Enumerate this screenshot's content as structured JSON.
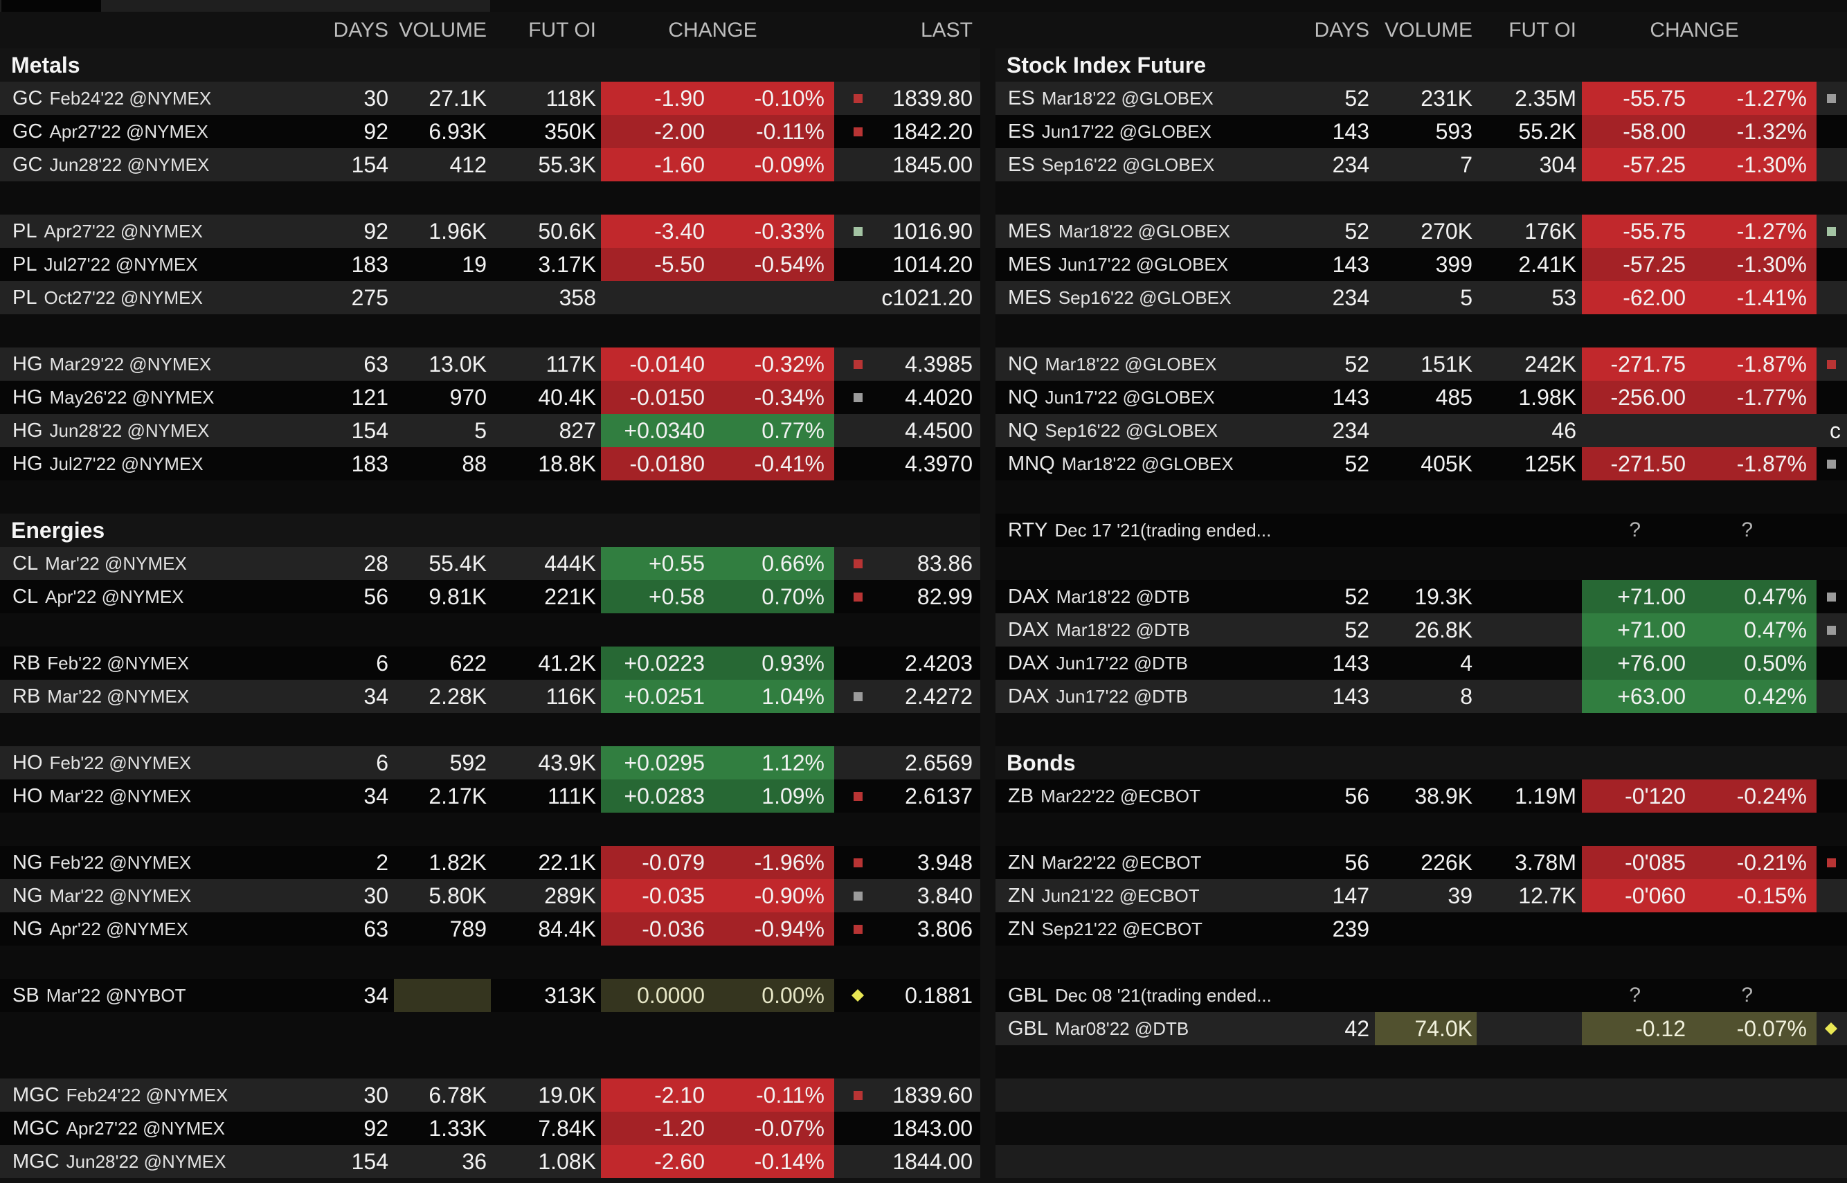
{
  "columns": {
    "days": "DAYS",
    "volume": "VOLUME",
    "fut_oi": "FUT OI",
    "change": "CHANGE",
    "last": "LAST"
  },
  "colors": {
    "row_light": "#232323",
    "row_dark": "#060606",
    "change_down_bg": "#c1282c",
    "change_down_bg_dim": "#a42226",
    "change_up_bg": "#317e40",
    "change_up_bg_dim": "#276834",
    "flat_dim_bg": "#35351f",
    "flat_highlight_bg": "#51512f",
    "indicator_red": "#b83434",
    "indicator_green": "#a3c3a3",
    "indicator_gray": "#9b9b9b",
    "indicator_yellow": "#e9e754"
  },
  "left_table": {
    "rows": [
      {
        "kind": "section",
        "label": "Metals"
      },
      {
        "kind": "quote",
        "shade": "light",
        "sym": "GC",
        "det": "Feb24'22 @NYMEX",
        "days": "30",
        "vol": "27.1K",
        "oi": "118K",
        "chg": "-1.90",
        "pct": "-0.10%",
        "dir": "dn",
        "ind": "red",
        "last": "1839.80"
      },
      {
        "kind": "quote",
        "shade": "dark",
        "sym": "GC",
        "det": "Apr27'22 @NYMEX",
        "days": "92",
        "vol": "6.93K",
        "oi": "350K",
        "chg": "-2.00",
        "pct": "-0.11%",
        "dir": "dn",
        "ind": "red",
        "last": "1842.20"
      },
      {
        "kind": "quote",
        "shade": "light",
        "sym": "GC",
        "det": "Jun28'22 @NYMEX",
        "days": "154",
        "vol": "412",
        "oi": "55.3K",
        "chg": "-1.60",
        "pct": "-0.09%",
        "dir": "dn",
        "last": "1845.00"
      },
      {
        "kind": "gap",
        "shade": "dark"
      },
      {
        "kind": "quote",
        "shade": "light",
        "sym": "PL",
        "det": "Apr27'22 @NYMEX",
        "days": "92",
        "vol": "1.96K",
        "oi": "50.6K",
        "chg": "-3.40",
        "pct": "-0.33%",
        "dir": "dn",
        "ind": "green",
        "last": "1016.90"
      },
      {
        "kind": "quote",
        "shade": "dark",
        "sym": "PL",
        "det": "Jul27'22 @NYMEX",
        "days": "183",
        "vol": "19",
        "oi": "3.17K",
        "chg": "-5.50",
        "pct": "-0.54%",
        "dir": "dn",
        "last": "1014.20"
      },
      {
        "kind": "quote",
        "shade": "light",
        "sym": "PL",
        "det": "Oct27'22 @NYMEX",
        "days": "275",
        "oi": "358",
        "dir": "none",
        "last": "c1021.20"
      },
      {
        "kind": "gap",
        "shade": "dark"
      },
      {
        "kind": "quote",
        "shade": "light",
        "sym": "HG",
        "det": "Mar29'22 @NYMEX",
        "days": "63",
        "vol": "13.0K",
        "oi": "117K",
        "chg": "-0.0140",
        "pct": "-0.32%",
        "dir": "dn",
        "ind": "red",
        "last": "4.3985"
      },
      {
        "kind": "quote",
        "shade": "dark",
        "sym": "HG",
        "det": "May26'22 @NYMEX",
        "days": "121",
        "vol": "970",
        "oi": "40.4K",
        "chg": "-0.0150",
        "pct": "-0.34%",
        "dir": "dn",
        "ind": "gray",
        "last": "4.4020"
      },
      {
        "kind": "quote",
        "shade": "light",
        "sym": "HG",
        "det": "Jun28'22 @NYMEX",
        "days": "154",
        "vol": "5",
        "oi": "827",
        "chg": "+0.0340",
        "pct": "0.77%",
        "dir": "up",
        "last": "4.4500"
      },
      {
        "kind": "quote",
        "shade": "dark",
        "sym": "HG",
        "det": "Jul27'22 @NYMEX",
        "days": "183",
        "vol": "88",
        "oi": "18.8K",
        "chg": "-0.0180",
        "pct": "-0.41%",
        "dir": "dn",
        "last": "4.3970"
      },
      {
        "kind": "gap",
        "shade": "dark"
      },
      {
        "kind": "section",
        "label": "Energies"
      },
      {
        "kind": "quote",
        "shade": "light",
        "sym": "CL",
        "det": "Mar'22 @NYMEX",
        "days": "28",
        "vol": "55.4K",
        "oi": "444K",
        "chg": "+0.55",
        "pct": "0.66%",
        "dir": "up",
        "ind": "red",
        "last": "83.86"
      },
      {
        "kind": "quote",
        "shade": "dark",
        "sym": "CL",
        "det": "Apr'22 @NYMEX",
        "days": "56",
        "vol": "9.81K",
        "oi": "221K",
        "chg": "+0.58",
        "pct": "0.70%",
        "dir": "up",
        "ind": "red",
        "last": "82.99"
      },
      {
        "kind": "gap",
        "shade": "dark"
      },
      {
        "kind": "quote",
        "shade": "dark",
        "sym": "RB",
        "det": "Feb'22 @NYMEX",
        "days": "6",
        "vol": "622",
        "oi": "41.2K",
        "chg": "+0.0223",
        "pct": "0.93%",
        "dir": "up",
        "last": "2.4203"
      },
      {
        "kind": "quote",
        "shade": "light",
        "sym": "RB",
        "det": "Mar'22 @NYMEX",
        "days": "34",
        "vol": "2.28K",
        "oi": "116K",
        "chg": "+0.0251",
        "pct": "1.04%",
        "dir": "up",
        "ind": "gray",
        "last": "2.4272"
      },
      {
        "kind": "gap",
        "shade": "dark"
      },
      {
        "kind": "quote",
        "shade": "light",
        "sym": "HO",
        "det": "Feb'22 @NYMEX",
        "days": "6",
        "vol": "592",
        "oi": "43.9K",
        "chg": "+0.0295",
        "pct": "1.12%",
        "dir": "up",
        "last": "2.6569"
      },
      {
        "kind": "quote",
        "shade": "dark",
        "sym": "HO",
        "det": "Mar'22 @NYMEX",
        "days": "34",
        "vol": "2.17K",
        "oi": "111K",
        "chg": "+0.0283",
        "pct": "1.09%",
        "dir": "up",
        "ind": "red",
        "last": "2.6137"
      },
      {
        "kind": "gap",
        "shade": "dark"
      },
      {
        "kind": "quote",
        "shade": "dark",
        "sym": "NG",
        "det": "Feb'22 @NYMEX",
        "days": "2",
        "vol": "1.82K",
        "oi": "22.1K",
        "chg": "-0.079",
        "pct": "-1.96%",
        "dir": "dn",
        "ind": "red",
        "last": "3.948"
      },
      {
        "kind": "quote",
        "shade": "light",
        "sym": "NG",
        "det": "Mar'22 @NYMEX",
        "days": "30",
        "vol": "5.80K",
        "oi": "289K",
        "chg": "-0.035",
        "pct": "-0.90%",
        "dir": "dn",
        "ind": "gray",
        "last": "3.840"
      },
      {
        "kind": "quote",
        "shade": "dark",
        "sym": "NG",
        "det": "Apr'22 @NYMEX",
        "days": "63",
        "vol": "789",
        "oi": "84.4K",
        "chg": "-0.036",
        "pct": "-0.94%",
        "dir": "dn",
        "ind": "red",
        "last": "3.806"
      },
      {
        "kind": "gap",
        "shade": "dark"
      },
      {
        "kind": "quote",
        "shade": "dark",
        "sym": "SB",
        "det": "Mar'22 @NYBOT",
        "days": "34",
        "vol": "",
        "volbg": "fl",
        "oi": "313K",
        "chg": "0.0000",
        "pct": "0.00%",
        "dir": "fl",
        "ind": "yellow",
        "last": "0.1881"
      },
      {
        "kind": "gap",
        "shade": "dark"
      },
      {
        "kind": "gap",
        "shade": "dark"
      },
      {
        "kind": "quote",
        "shade": "light",
        "sym": "MGC",
        "det": "Feb24'22 @NYMEX",
        "days": "30",
        "vol": "6.78K",
        "oi": "19.0K",
        "chg": "-2.10",
        "pct": "-0.11%",
        "dir": "dn",
        "ind": "red",
        "last": "1839.60"
      },
      {
        "kind": "quote",
        "shade": "dark",
        "sym": "MGC",
        "det": "Apr27'22 @NYMEX",
        "days": "92",
        "vol": "1.33K",
        "oi": "7.84K",
        "chg": "-1.20",
        "pct": "-0.07%",
        "dir": "dn",
        "last": "1843.00"
      },
      {
        "kind": "quote",
        "shade": "light",
        "sym": "MGC",
        "det": "Jun28'22 @NYMEX",
        "days": "154",
        "vol": "36",
        "oi": "1.08K",
        "chg": "-2.60",
        "pct": "-0.14%",
        "dir": "dn",
        "last": "1844.00"
      }
    ]
  },
  "right_table": {
    "rows": [
      {
        "kind": "section",
        "label": "Stock Index Future"
      },
      {
        "kind": "quote",
        "shade": "light",
        "sym": "ES",
        "det": "Mar18'22 @GLOBEX",
        "days": "52",
        "vol": "231K",
        "oi": "2.35M",
        "chg": "-55.75",
        "pct": "-1.27%",
        "dir": "dn",
        "ind": "gray"
      },
      {
        "kind": "quote",
        "shade": "dark",
        "sym": "ES",
        "det": "Jun17'22 @GLOBEX",
        "days": "143",
        "vol": "593",
        "oi": "55.2K",
        "chg": "-58.00",
        "pct": "-1.32%",
        "dir": "dn"
      },
      {
        "kind": "quote",
        "shade": "light",
        "sym": "ES",
        "det": "Sep16'22 @GLOBEX",
        "days": "234",
        "vol": "7",
        "oi": "304",
        "chg": "-57.25",
        "pct": "-1.30%",
        "dir": "dn"
      },
      {
        "kind": "gap",
        "shade": "dark"
      },
      {
        "kind": "quote",
        "shade": "light",
        "sym": "MES",
        "det": "Mar18'22 @GLOBEX",
        "days": "52",
        "vol": "270K",
        "oi": "176K",
        "chg": "-55.75",
        "pct": "-1.27%",
        "dir": "dn",
        "ind": "green"
      },
      {
        "kind": "quote",
        "shade": "dark",
        "sym": "MES",
        "det": "Jun17'22 @GLOBEX",
        "days": "143",
        "vol": "399",
        "oi": "2.41K",
        "chg": "-57.25",
        "pct": "-1.30%",
        "dir": "dn"
      },
      {
        "kind": "quote",
        "shade": "light",
        "sym": "MES",
        "det": "Sep16'22 @GLOBEX",
        "days": "234",
        "vol": "5",
        "oi": "53",
        "chg": "-62.00",
        "pct": "-1.41%",
        "dir": "dn"
      },
      {
        "kind": "gap",
        "shade": "dark"
      },
      {
        "kind": "quote",
        "shade": "light",
        "sym": "NQ",
        "det": "Mar18'22 @GLOBEX",
        "days": "52",
        "vol": "151K",
        "oi": "242K",
        "chg": "-271.75",
        "pct": "-1.87%",
        "dir": "dn",
        "ind": "red"
      },
      {
        "kind": "quote",
        "shade": "dark",
        "sym": "NQ",
        "det": "Jun17'22 @GLOBEX",
        "days": "143",
        "vol": "485",
        "oi": "1.98K",
        "chg": "-256.00",
        "pct": "-1.77%",
        "dir": "dn"
      },
      {
        "kind": "quote",
        "shade": "light",
        "sym": "NQ",
        "det": "Sep16'22 @GLOBEX",
        "days": "234",
        "oi": "46",
        "dir": "none",
        "last": "c"
      },
      {
        "kind": "quote",
        "shade": "dark",
        "sym": "MNQ",
        "det": "Mar18'22 @GLOBEX",
        "days": "52",
        "vol": "405K",
        "oi": "125K",
        "chg": "-271.50",
        "pct": "-1.87%",
        "dir": "dn",
        "ind": "gray"
      },
      {
        "kind": "gap",
        "shade": "dark"
      },
      {
        "kind": "quote",
        "shade": "dark",
        "sym": "RTY",
        "det": "Dec 17 '21(trading ended...",
        "dir": "none",
        "q": true
      },
      {
        "kind": "gap",
        "shade": "dark"
      },
      {
        "kind": "quote",
        "shade": "dark",
        "sym": "DAX",
        "det": "Mar18'22 @DTB",
        "days": "52",
        "vol": "19.3K",
        "chg": "+71.00",
        "pct": "0.47%",
        "dir": "up",
        "ind": "gray"
      },
      {
        "kind": "quote",
        "shade": "light",
        "sym": "DAX",
        "det": "Mar18'22 @DTB",
        "days": "52",
        "vol": "26.8K",
        "chg": "+71.00",
        "pct": "0.47%",
        "dir": "up",
        "ind": "gray"
      },
      {
        "kind": "quote",
        "shade": "dark",
        "sym": "DAX",
        "det": "Jun17'22 @DTB",
        "days": "143",
        "vol": "4",
        "chg": "+76.00",
        "pct": "0.50%",
        "dir": "up"
      },
      {
        "kind": "quote",
        "shade": "light",
        "sym": "DAX",
        "det": "Jun17'22 @DTB",
        "days": "143",
        "vol": "8",
        "chg": "+63.00",
        "pct": "0.42%",
        "dir": "up"
      },
      {
        "kind": "gap",
        "shade": "dark"
      },
      {
        "kind": "section",
        "label": "Bonds"
      },
      {
        "kind": "quote",
        "shade": "dark",
        "sym": "ZB",
        "det": "Mar22'22 @ECBOT",
        "days": "56",
        "vol": "38.9K",
        "oi": "1.19M",
        "chg": "-0'120",
        "pct": "-0.24%",
        "dir": "dn"
      },
      {
        "kind": "gap",
        "shade": "dark"
      },
      {
        "kind": "quote",
        "shade": "dark",
        "sym": "ZN",
        "det": "Mar22'22 @ECBOT",
        "days": "56",
        "vol": "226K",
        "oi": "3.78M",
        "chg": "-0'085",
        "pct": "-0.21%",
        "dir": "dn",
        "ind": "red"
      },
      {
        "kind": "quote",
        "shade": "light",
        "sym": "ZN",
        "det": "Jun21'22 @ECBOT",
        "days": "147",
        "vol": "39",
        "oi": "12.7K",
        "chg": "-0'060",
        "pct": "-0.15%",
        "dir": "dn"
      },
      {
        "kind": "quote",
        "shade": "dark",
        "sym": "ZN",
        "det": "Sep21'22 @ECBOT",
        "days": "239",
        "dir": "none"
      },
      {
        "kind": "gap",
        "shade": "dark"
      },
      {
        "kind": "quote",
        "shade": "dark",
        "sym": "GBL",
        "det": "Dec 08 '21(trading ended...",
        "dir": "none",
        "q": true
      },
      {
        "kind": "quote",
        "shade": "light",
        "sym": "GBL",
        "det": "Mar08'22 @DTB",
        "days": "42",
        "vol": "74.0K",
        "volbg": "fb",
        "chg": "-0.12",
        "pct": "-0.07%",
        "dir": "fb",
        "ind": "yellow"
      },
      {
        "kind": "gap",
        "shade": "dark"
      },
      {
        "kind": "gap",
        "shade": "light"
      },
      {
        "kind": "gap",
        "shade": "dark"
      },
      {
        "kind": "gap",
        "shade": "light"
      }
    ]
  }
}
